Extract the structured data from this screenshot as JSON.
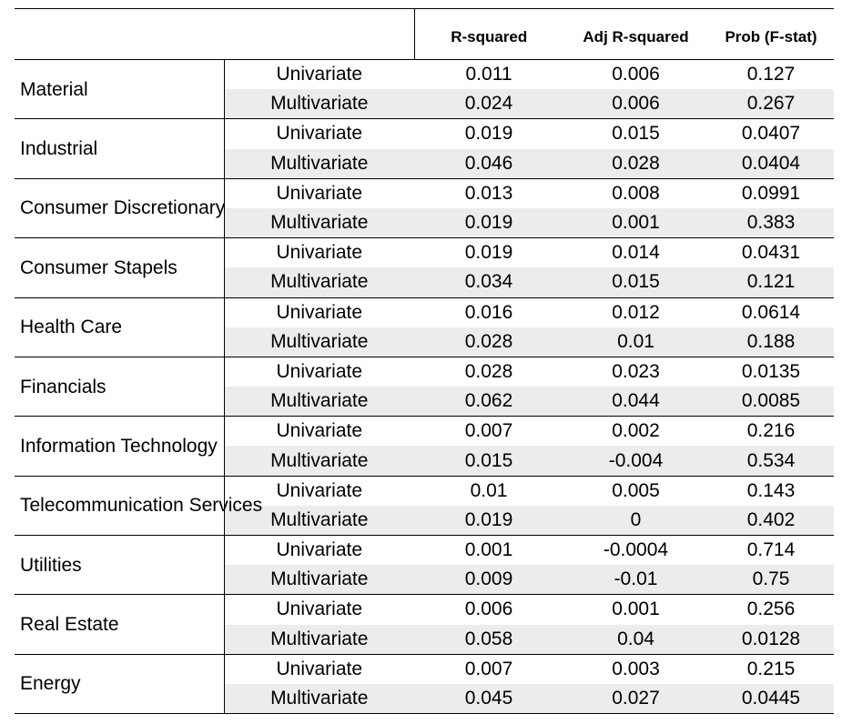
{
  "header": {
    "blank": "",
    "columns": [
      "R-squared",
      "Adj R-squared",
      "Prob (F-stat)"
    ]
  },
  "rows": [
    {
      "sector": "Material",
      "univariate": {
        "label": "Univariate",
        "values": [
          "0.011",
          "0.006",
          "0.127"
        ]
      },
      "multivariate": {
        "label": "Multivariate",
        "values": [
          "0.024",
          "0.006",
          "0.267"
        ]
      }
    },
    {
      "sector": "Industrial",
      "univariate": {
        "label": "Univariate",
        "values": [
          "0.019",
          "0.015",
          "0.0407"
        ]
      },
      "multivariate": {
        "label": "Multivariate",
        "values": [
          "0.046",
          "0.028",
          "0.0404"
        ]
      }
    },
    {
      "sector": "Consumer Discretionary",
      "univariate": {
        "label": "Univariate",
        "values": [
          "0.013",
          "0.008",
          "0.0991"
        ]
      },
      "multivariate": {
        "label": "Multivariate",
        "values": [
          "0.019",
          "0.001",
          "0.383"
        ]
      }
    },
    {
      "sector": "Consumer Stapels",
      "univariate": {
        "label": "Univariate",
        "values": [
          "0.019",
          "0.014",
          "0.0431"
        ]
      },
      "multivariate": {
        "label": "Multivariate",
        "values": [
          "0.034",
          "0.015",
          "0.121"
        ]
      }
    },
    {
      "sector": "Health Care",
      "univariate": {
        "label": "Univariate",
        "values": [
          "0.016",
          "0.012",
          "0.0614"
        ]
      },
      "multivariate": {
        "label": "Multivariate",
        "values": [
          "0.028",
          "0.01",
          "0.188"
        ]
      }
    },
    {
      "sector": "Financials",
      "univariate": {
        "label": "Univariate",
        "values": [
          "0.028",
          "0.023",
          "0.0135"
        ]
      },
      "multivariate": {
        "label": "Multivariate",
        "values": [
          "0.062",
          "0.044",
          "0.0085"
        ]
      }
    },
    {
      "sector": "Information Technology",
      "univariate": {
        "label": "Univariate",
        "values": [
          "0.007",
          "0.002",
          "0.216"
        ]
      },
      "multivariate": {
        "label": "Multivariate",
        "values": [
          "0.015",
          "-0.004",
          "0.534"
        ]
      }
    },
    {
      "sector": "Telecommunication Services",
      "univariate": {
        "label": "Univariate",
        "values": [
          "0.01",
          "0.005",
          "0.143"
        ]
      },
      "multivariate": {
        "label": "Multivariate",
        "values": [
          "0.019",
          "0",
          "0.402"
        ]
      }
    },
    {
      "sector": "Utilities",
      "univariate": {
        "label": "Univariate",
        "values": [
          "0.001",
          "-0.0004",
          "0.714"
        ]
      },
      "multivariate": {
        "label": "Multivariate",
        "values": [
          "0.009",
          "-0.01",
          "0.75"
        ]
      }
    },
    {
      "sector": "Real Estate",
      "univariate": {
        "label": "Univariate",
        "values": [
          "0.006",
          "0.001",
          "0.256"
        ]
      },
      "multivariate": {
        "label": "Multivariate",
        "values": [
          "0.058",
          "0.04",
          "0.0128"
        ]
      }
    },
    {
      "sector": "Energy",
      "univariate": {
        "label": "Univariate",
        "values": [
          "0.007",
          "0.003",
          "0.215"
        ]
      },
      "multivariate": {
        "label": "Multivariate",
        "values": [
          "0.045",
          "0.027",
          "0.0445"
        ]
      }
    }
  ],
  "colors": {
    "shade": "#ececec",
    "rule": "#000000"
  }
}
